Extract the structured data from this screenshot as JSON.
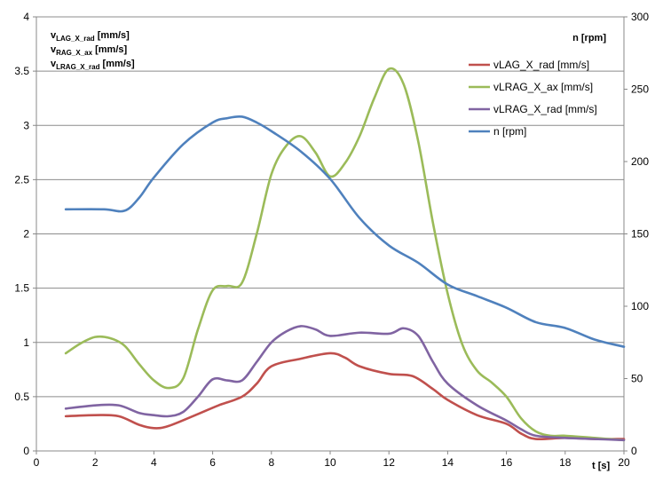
{
  "chart_data": {
    "type": "line",
    "x_label": "t [s]",
    "y_label_lines": [
      {
        "base": "v",
        "sub": "LAG_X_rad",
        "unit": " [mm/s]"
      },
      {
        "base": "v",
        "sub": "RAG_X_ax",
        "unit": " [mm/s]"
      },
      {
        "base": "v",
        "sub": "LRAG_X_rad",
        "unit": " [mm/s]"
      }
    ],
    "y2_label": "n [rpm]",
    "xlim": [
      0,
      20
    ],
    "ylim": [
      0,
      4
    ],
    "y2lim": [
      0,
      300
    ],
    "x_ticks": [
      "0",
      "2",
      "4",
      "6",
      "8",
      "10",
      "12",
      "14",
      "16",
      "18",
      "20"
    ],
    "y_ticks": [
      "0",
      "0.5",
      "1",
      "1.5",
      "2",
      "2.5",
      "3",
      "3.5",
      "4"
    ],
    "y2_ticks": [
      "0",
      "50",
      "100",
      "150",
      "200",
      "250",
      "300"
    ],
    "grid": "horizontal",
    "legend_position": "top-right",
    "series": [
      {
        "name": "vLAG_X_rad [mm/s]",
        "color": "#c0504d",
        "axis": "left",
        "points": [
          [
            1,
            0.32
          ],
          [
            2,
            0.33
          ],
          [
            2.8,
            0.32
          ],
          [
            3.5,
            0.24
          ],
          [
            4,
            0.21
          ],
          [
            4.5,
            0.23
          ],
          [
            5.5,
            0.34
          ],
          [
            6.2,
            0.42
          ],
          [
            7,
            0.5
          ],
          [
            7.5,
            0.62
          ],
          [
            8,
            0.78
          ],
          [
            9,
            0.85
          ],
          [
            10,
            0.9
          ],
          [
            10.5,
            0.86
          ],
          [
            11,
            0.78
          ],
          [
            12,
            0.71
          ],
          [
            12.8,
            0.69
          ],
          [
            13.5,
            0.57
          ],
          [
            14,
            0.47
          ],
          [
            15,
            0.33
          ],
          [
            16,
            0.25
          ],
          [
            16.5,
            0.16
          ],
          [
            17,
            0.11
          ],
          [
            18,
            0.12
          ],
          [
            19,
            0.11
          ],
          [
            20,
            0.11
          ]
        ]
      },
      {
        "name": "vLRAG_X_ax  [mm/s]",
        "color": "#9bbb59",
        "axis": "left",
        "points": [
          [
            1,
            0.9
          ],
          [
            1.5,
            0.99
          ],
          [
            2,
            1.05
          ],
          [
            2.5,
            1.04
          ],
          [
            3,
            0.97
          ],
          [
            3.5,
            0.8
          ],
          [
            4,
            0.65
          ],
          [
            4.5,
            0.58
          ],
          [
            5,
            0.67
          ],
          [
            5.5,
            1.12
          ],
          [
            6,
            1.48
          ],
          [
            6.5,
            1.52
          ],
          [
            7,
            1.55
          ],
          [
            7.5,
            2.0
          ],
          [
            8,
            2.55
          ],
          [
            8.5,
            2.81
          ],
          [
            9,
            2.9
          ],
          [
            9.5,
            2.75
          ],
          [
            10,
            2.53
          ],
          [
            10.5,
            2.65
          ],
          [
            11,
            2.9
          ],
          [
            11.5,
            3.25
          ],
          [
            12,
            3.52
          ],
          [
            12.5,
            3.38
          ],
          [
            13,
            2.85
          ],
          [
            13.5,
            2.1
          ],
          [
            14,
            1.45
          ],
          [
            14.5,
            0.98
          ],
          [
            15,
            0.74
          ],
          [
            15.5,
            0.63
          ],
          [
            16,
            0.5
          ],
          [
            16.5,
            0.3
          ],
          [
            17,
            0.18
          ],
          [
            17.5,
            0.14
          ],
          [
            18,
            0.14
          ],
          [
            19,
            0.12
          ],
          [
            20,
            0.1
          ]
        ]
      },
      {
        "name": "vLRAG_X_rad  [mm/s]",
        "color": "#8064a2",
        "axis": "left",
        "points": [
          [
            1,
            0.39
          ],
          [
            2,
            0.42
          ],
          [
            2.8,
            0.42
          ],
          [
            3.5,
            0.35
          ],
          [
            4,
            0.33
          ],
          [
            4.5,
            0.32
          ],
          [
            5,
            0.36
          ],
          [
            5.5,
            0.5
          ],
          [
            6,
            0.66
          ],
          [
            6.5,
            0.65
          ],
          [
            7,
            0.65
          ],
          [
            7.5,
            0.82
          ],
          [
            8,
            1.0
          ],
          [
            8.5,
            1.1
          ],
          [
            9,
            1.15
          ],
          [
            9.5,
            1.12
          ],
          [
            10,
            1.06
          ],
          [
            11,
            1.09
          ],
          [
            12,
            1.08
          ],
          [
            12.5,
            1.13
          ],
          [
            13,
            1.06
          ],
          [
            13.5,
            0.82
          ],
          [
            14,
            0.62
          ],
          [
            15,
            0.42
          ],
          [
            16,
            0.28
          ],
          [
            16.5,
            0.2
          ],
          [
            17,
            0.14
          ],
          [
            18,
            0.12
          ],
          [
            19,
            0.11
          ],
          [
            20,
            0.1
          ]
        ]
      },
      {
        "name": "n [rpm]",
        "color": "#4f81bd",
        "axis": "right",
        "points": [
          [
            1,
            167
          ],
          [
            2.3,
            167
          ],
          [
            3,
            166
          ],
          [
            3.5,
            175
          ],
          [
            4,
            189
          ],
          [
            5,
            212
          ],
          [
            6,
            227
          ],
          [
            6.5,
            230
          ],
          [
            7,
            231
          ],
          [
            7.5,
            227
          ],
          [
            8,
            221
          ],
          [
            9,
            207
          ],
          [
            10,
            188
          ],
          [
            11,
            161
          ],
          [
            12,
            142
          ],
          [
            13,
            130
          ],
          [
            14,
            115
          ],
          [
            15,
            107
          ],
          [
            16,
            99
          ],
          [
            17,
            89
          ],
          [
            18,
            85
          ],
          [
            19,
            77
          ],
          [
            20,
            72
          ]
        ]
      }
    ]
  }
}
